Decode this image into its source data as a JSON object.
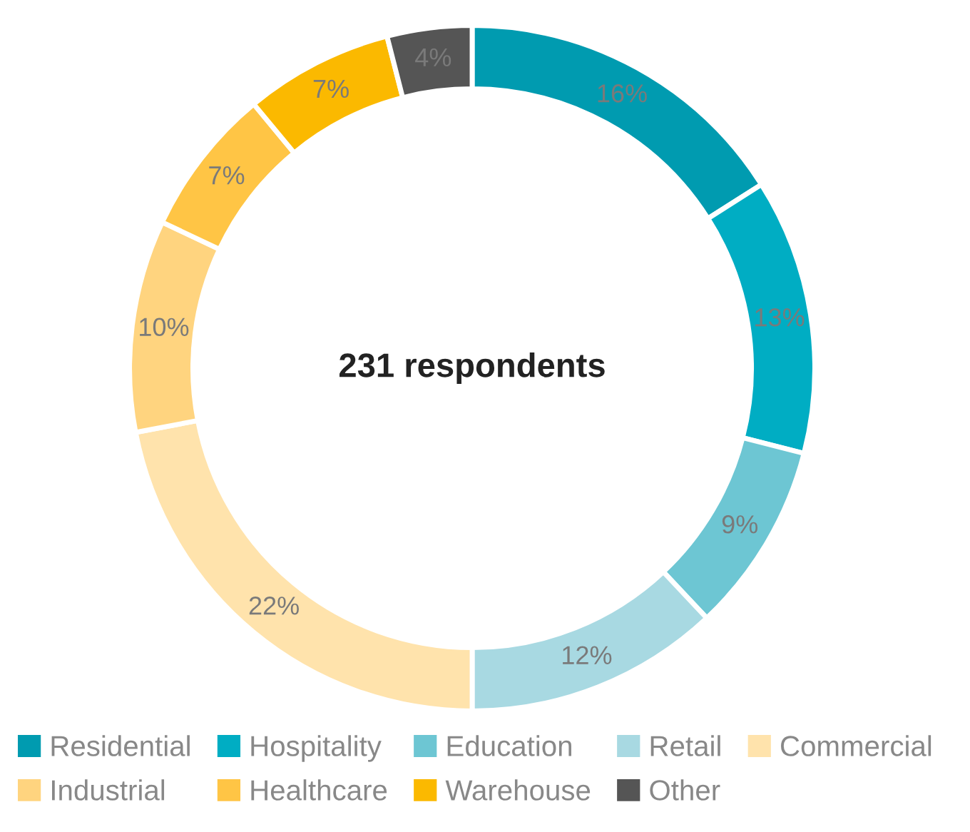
{
  "chart_data": {
    "type": "donut",
    "categories": [
      "Residential",
      "Hospitality",
      "Education",
      "Retail",
      "Commercial",
      "Industrial",
      "Healthcare",
      "Warehouse",
      "Other"
    ],
    "values": [
      16,
      13,
      9,
      12,
      22,
      10,
      7,
      7,
      4
    ],
    "value_labels": [
      "16%",
      "13%",
      "9%",
      "12%",
      "22%",
      "10%",
      "7%",
      "7%",
      "4%"
    ],
    "colors": [
      "#009bb0",
      "#00adc3",
      "#6dc6d3",
      "#a8d9e2",
      "#ffe3ac",
      "#ffd47f",
      "#ffc545",
      "#fbb900",
      "#555555"
    ],
    "annotations": [
      "231 respondents"
    ],
    "legend": "bottom"
  }
}
